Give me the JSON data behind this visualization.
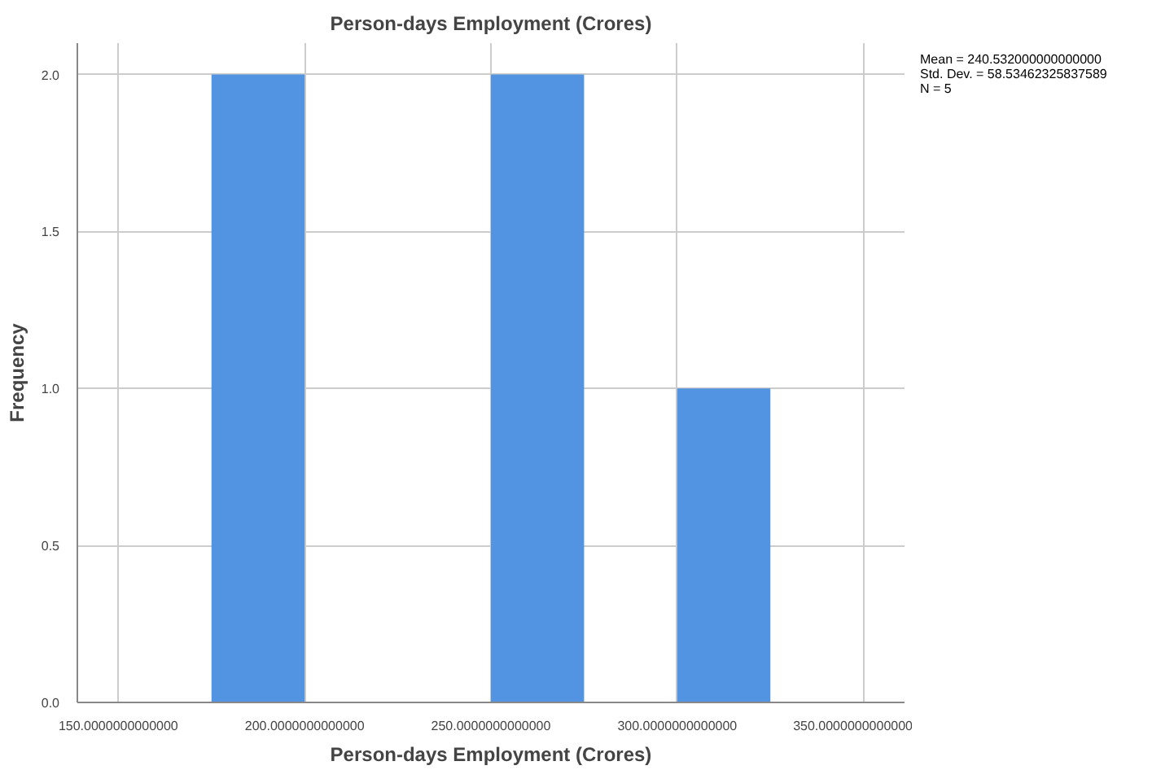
{
  "chart_data": {
    "type": "histogram",
    "title": "Person-days Employment (Crores)",
    "xlabel": "Person-days Employment (Crores)",
    "ylabel": "Frequency",
    "bins": [
      175,
      200,
      225,
      250,
      275,
      300,
      325
    ],
    "values": [
      2,
      0,
      0,
      2,
      0,
      1
    ],
    "color": "#5294e2",
    "xlim": [
      139,
      361
    ],
    "ylim": [
      0,
      2.1
    ],
    "xticks": [
      {
        "value": 150,
        "label": "150.0000000000000"
      },
      {
        "value": 200,
        "label": "200.0000000000000"
      },
      {
        "value": 250,
        "label": "250.0000000000000"
      },
      {
        "value": 300,
        "label": "300.0000000000000"
      },
      {
        "value": 350,
        "label": "350.0000000000000"
      }
    ],
    "yticks": [
      {
        "value": 0,
        "label": "0.0"
      },
      {
        "value": 0.5,
        "label": "0.5"
      },
      {
        "value": 1,
        "label": "1.0"
      },
      {
        "value": 1.5,
        "label": "1.5"
      },
      {
        "value": 2,
        "label": "2.0"
      }
    ],
    "grid": true,
    "annotations": [
      "Mean = 240.532000000000000",
      "Std. Dev. = 58.53462325837589",
      "N = 5"
    ]
  }
}
